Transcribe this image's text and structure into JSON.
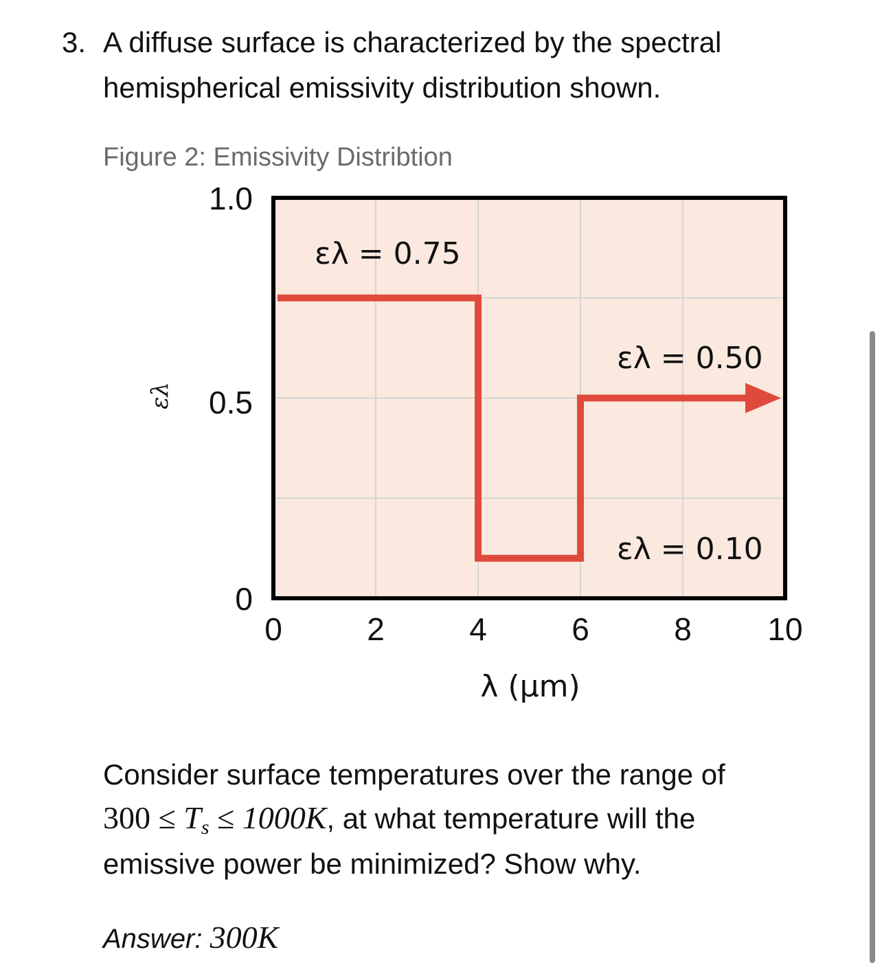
{
  "question": {
    "number": "3.",
    "line1": "A diffuse surface is characterized by the spectral",
    "line2": "hemispherical emissivity distribution shown."
  },
  "figure_caption": "Figure 2: Emissivity Distribtion",
  "chart_data": {
    "type": "line",
    "xlabel": "λ (µm)",
    "ylabel": "ελ",
    "xlim": [
      0,
      10
    ],
    "ylim": [
      0,
      1.0
    ],
    "x_ticks": [
      "0",
      "2",
      "4",
      "6",
      "8",
      "10"
    ],
    "y_ticks": [
      "0",
      "0.5",
      "1.0"
    ],
    "grid": true,
    "series": [
      {
        "x": [
          0,
          4,
          4,
          6,
          6,
          10
        ],
        "y": [
          0.75,
          0.75,
          0.1,
          0.1,
          0.5,
          0.5
        ]
      }
    ],
    "annotations": [
      {
        "text": "ελ = 0.75"
      },
      {
        "text": "ελ = 0.50"
      },
      {
        "text": "ελ = 0.10"
      }
    ],
    "colors": {
      "line": "#e04a3c",
      "plot_bg": "#fbe9df",
      "grid": "#d4d4d4",
      "frame": "#000000"
    }
  },
  "paragraph": {
    "line1": "Consider surface temperatures over the range of",
    "range_low": "300",
    "leq": "≤",
    "T": "T",
    "T_sub": "s",
    "range_high": "1000K",
    "line2_rest": ", at what temperature will the",
    "line3": "emissive power be minimized? Show why."
  },
  "answer": {
    "label": "Answer:",
    "value": "300K"
  }
}
